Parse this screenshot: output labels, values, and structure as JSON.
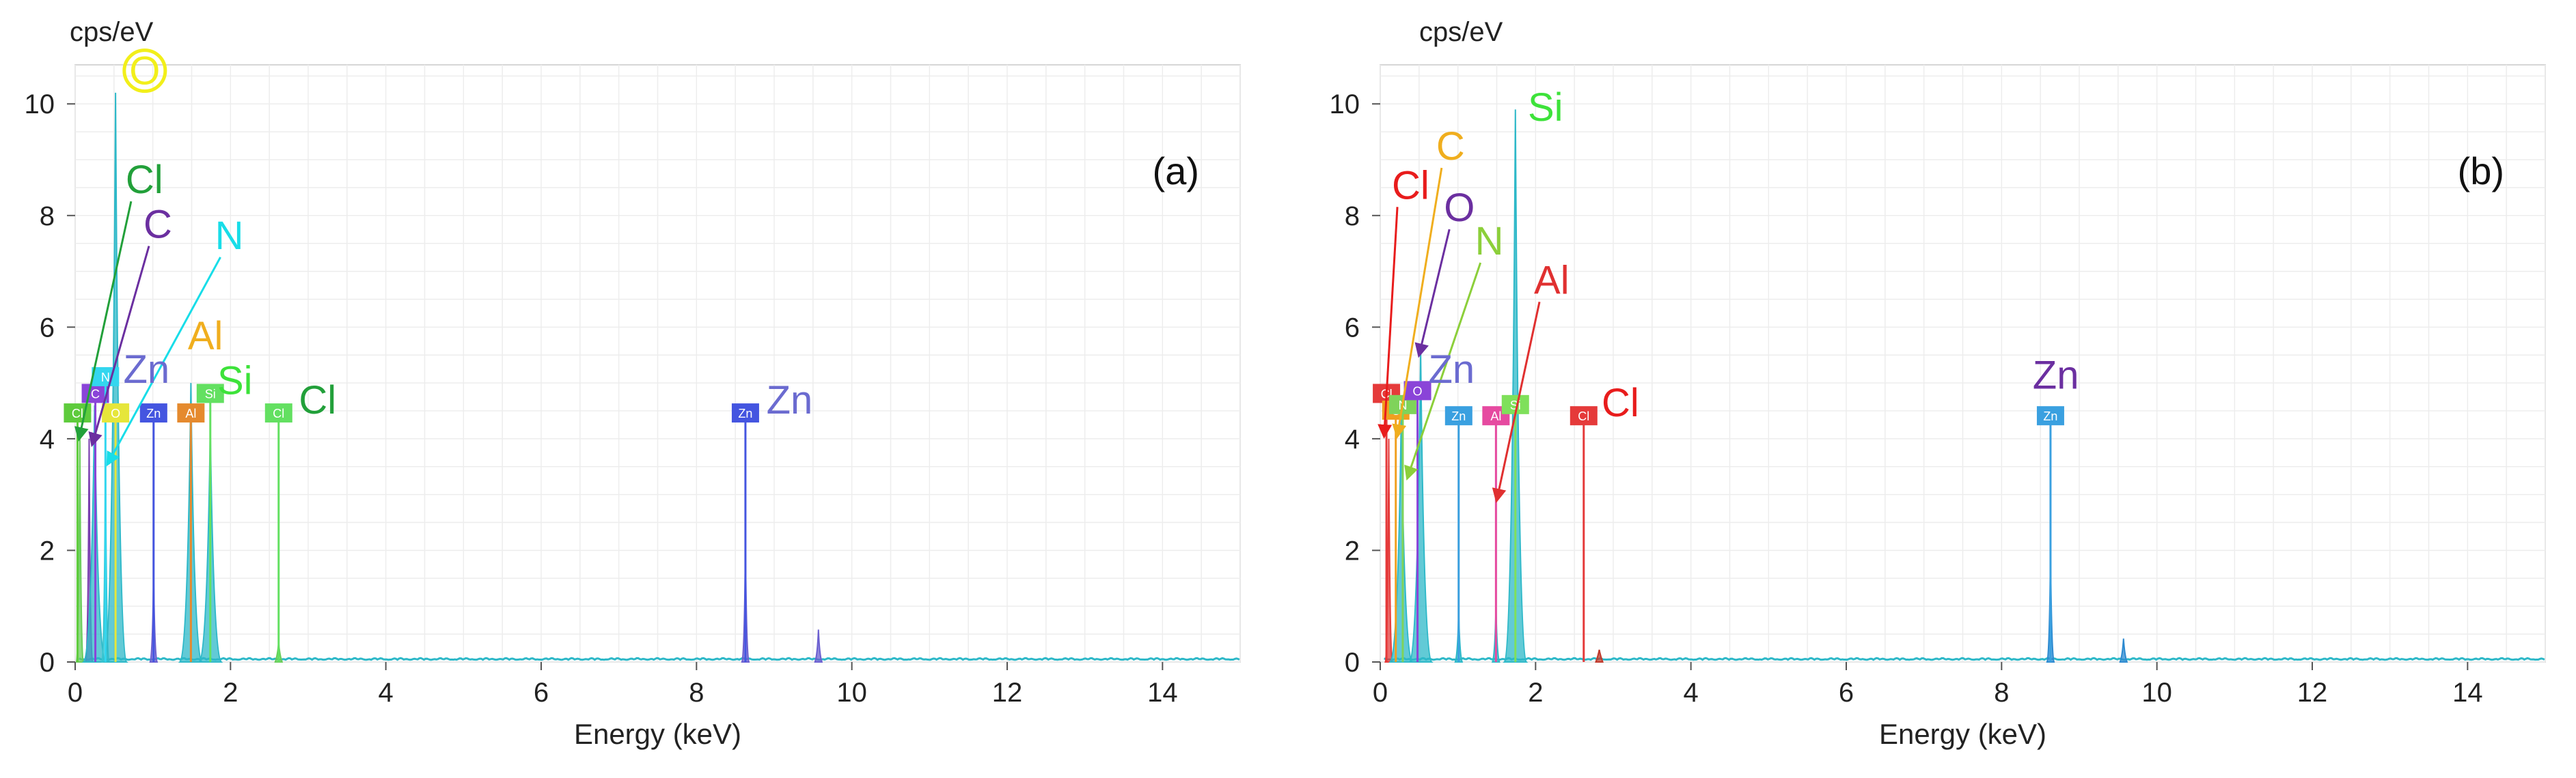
{
  "chart_data": [
    {
      "type": "line",
      "panel_label": "(a)",
      "ylabel": "cps/eV",
      "xlabel": "Energy (keV)",
      "xlim": [
        0,
        15
      ],
      "ylim": [
        0,
        10.7
      ],
      "x_ticks": [
        0,
        2,
        4,
        6,
        8,
        10,
        12,
        14
      ],
      "y_ticks": [
        0,
        2,
        4,
        6,
        8,
        10
      ],
      "grid": true,
      "spectrum_peaks": [
        {
          "energy": 0.06,
          "height": 4.1,
          "color": "#69cc5a"
        },
        {
          "energy": 0.18,
          "height": 4.0,
          "color": "#7a3fb0"
        },
        {
          "energy": 0.25,
          "height": 4.6,
          "color": "#2db8c8"
        },
        {
          "energy": 0.39,
          "height": 3.8,
          "color": "#35c4d0"
        },
        {
          "energy": 0.52,
          "height": 10.2,
          "color": "#2db8c8"
        },
        {
          "energy": 1.01,
          "height": 1.6,
          "color": "#6b5fd0"
        },
        {
          "energy": 1.49,
          "height": 5.0,
          "color": "#2db8c8"
        },
        {
          "energy": 1.74,
          "height": 4.2,
          "color": "#2db8c8"
        },
        {
          "energy": 2.62,
          "height": 0.35,
          "color": "#69cc5a"
        },
        {
          "energy": 8.63,
          "height": 2.1,
          "color": "#6b5fd0"
        },
        {
          "energy": 9.57,
          "height": 0.58,
          "color": "#6b5fd0"
        }
      ],
      "element_lines": [
        {
          "element": "Cl",
          "energy": 0.03,
          "color": "#5ecb3c",
          "label_color": "#22a03a",
          "top": 4.45
        },
        {
          "element": "C",
          "energy": 0.26,
          "color": "#8a44d8",
          "label_color": "#6b2fa0",
          "top": 4.8
        },
        {
          "element": "N",
          "energy": 0.39,
          "color": "#33d6ef",
          "label_color": "#18dde8",
          "top": 5.1
        },
        {
          "element": "O",
          "energy": 0.52,
          "color": "#e6e63a",
          "label_color": "#f2ef1a",
          "top": 4.45
        },
        {
          "element": "Zn",
          "energy": 1.01,
          "color": "#4455e0",
          "label_color": "#6b6bd0",
          "top": 4.45
        },
        {
          "element": "Al",
          "energy": 1.49,
          "color": "#e58a2e",
          "label_color": "#f0ae1e",
          "top": 4.45
        },
        {
          "element": "Si",
          "energy": 1.74,
          "color": "#63e061",
          "label_color": "#3de23a",
          "top": 4.8
        },
        {
          "element": "Cl",
          "energy": 2.62,
          "color": "#63e061",
          "label_color": "#22a03a",
          "top": 4.45
        },
        {
          "element": "Zn",
          "energy": 8.63,
          "color": "#4455e0",
          "label_color": "#6b6bd0",
          "top": 4.45
        }
      ],
      "annotations": [
        {
          "text": "O",
          "x": 0.72,
          "y": 10.35,
          "color": "#f2ef1a",
          "circle": true
        },
        {
          "text": "Cl",
          "x": 0.65,
          "y": 8.4,
          "color": "#22a03a",
          "arrow_to": [
            0.05,
            4.0
          ]
        },
        {
          "text": "C",
          "x": 0.88,
          "y": 7.6,
          "color": "#6b2fa0",
          "arrow_to": [
            0.22,
            3.9
          ]
        },
        {
          "text": "N",
          "x": 1.8,
          "y": 7.4,
          "color": "#18dde8",
          "arrow_to": [
            0.42,
            3.55
          ]
        },
        {
          "text": "Zn",
          "x": 0.62,
          "y": 5.0,
          "color": "#6b6bd0"
        },
        {
          "text": "Al",
          "x": 1.45,
          "y": 5.6,
          "color": "#f0ae1e"
        },
        {
          "text": "Si",
          "x": 1.83,
          "y": 4.8,
          "color": "#3de23a"
        },
        {
          "text": "Cl",
          "x": 2.88,
          "y": 4.45,
          "color": "#22a03a"
        },
        {
          "text": "Zn",
          "x": 8.9,
          "y": 4.45,
          "color": "#6b6bd0"
        }
      ]
    },
    {
      "type": "line",
      "panel_label": "(b)",
      "ylabel": "cps/eV",
      "xlabel": "Energy (keV)",
      "xlim": [
        0,
        15
      ],
      "ylim": [
        0,
        10.7
      ],
      "x_ticks": [
        0,
        2,
        4,
        6,
        8,
        10,
        12,
        14
      ],
      "y_ticks": [
        0,
        2,
        4,
        6,
        8,
        10
      ],
      "grid": true,
      "spectrum_peaks": [
        {
          "energy": 0.11,
          "height": 4.0,
          "color": "#e53a3a"
        },
        {
          "energy": 0.27,
          "height": 4.4,
          "color": "#2db8c8"
        },
        {
          "energy": 0.52,
          "height": 5.6,
          "color": "#2db8c8"
        },
        {
          "energy": 1.01,
          "height": 0.9,
          "color": "#2db8c8"
        },
        {
          "energy": 1.49,
          "height": 1.0,
          "color": "#2db8c8"
        },
        {
          "energy": 1.74,
          "height": 9.9,
          "color": "#2db8c8"
        },
        {
          "energy": 2.82,
          "height": 0.22,
          "color": "#c0392b"
        },
        {
          "energy": 8.63,
          "height": 2.0,
          "color": "#2d8ad0"
        },
        {
          "energy": 9.57,
          "height": 0.42,
          "color": "#2d8ad0"
        }
      ],
      "element_lines": [
        {
          "element": "Cl",
          "energy": 0.08,
          "color": "#e53a3a",
          "label_color": "#e81c1c",
          "top": 4.8
        },
        {
          "element": "C",
          "energy": 0.2,
          "color": "#f0a020",
          "label_color": "#f0ae1e",
          "top": 4.5
        },
        {
          "element": "N",
          "energy": 0.29,
          "color": "#7fd35a",
          "label_color": "#8ccf3a",
          "top": 4.6
        },
        {
          "element": "O",
          "energy": 0.48,
          "color": "#8a44d8",
          "label_color": "#6b2fa0",
          "top": 4.85
        },
        {
          "element": "Zn",
          "energy": 1.01,
          "color": "#3aa0e0",
          "label_color": "#6b6bd0",
          "top": 4.4
        },
        {
          "element": "Al",
          "energy": 1.49,
          "color": "#e64aa0",
          "label_color": "#e03030",
          "top": 4.4
        },
        {
          "element": "Si",
          "energy": 1.74,
          "color": "#7fe05a",
          "label_color": "#3de23a",
          "top": 4.6
        },
        {
          "element": "Cl",
          "energy": 2.62,
          "color": "#e53a3a",
          "label_color": "#e81c1c",
          "top": 4.4
        },
        {
          "element": "Zn",
          "energy": 8.63,
          "color": "#3aa0e0",
          "label_color": "#6b6bd0",
          "top": 4.4
        }
      ],
      "annotations": [
        {
          "text": "Si",
          "x": 1.9,
          "y": 9.7,
          "color": "#3de23a"
        },
        {
          "text": "C",
          "x": 0.72,
          "y": 9.0,
          "color": "#f0ae1e",
          "arrow_to": [
            0.22,
            4.05
          ]
        },
        {
          "text": "Cl",
          "x": 0.15,
          "y": 8.3,
          "color": "#e81c1c",
          "arrow_to": [
            0.05,
            4.05
          ]
        },
        {
          "text": "O",
          "x": 0.82,
          "y": 7.9,
          "color": "#6b2fa0",
          "arrow_to": [
            0.5,
            5.5
          ]
        },
        {
          "text": "N",
          "x": 1.22,
          "y": 7.3,
          "color": "#8ccf3a",
          "arrow_to": [
            0.35,
            3.3
          ]
        },
        {
          "text": "Al",
          "x": 1.98,
          "y": 6.6,
          "color": "#e03030",
          "arrow_to": [
            1.5,
            2.9
          ]
        },
        {
          "text": "Zn",
          "x": 0.62,
          "y": 5.0,
          "color": "#6b6bd0"
        },
        {
          "text": "Cl",
          "x": 2.85,
          "y": 4.4,
          "color": "#e81c1c"
        },
        {
          "text": "Zn",
          "x": 8.4,
          "y": 4.9,
          "color": "#6b2fa0"
        }
      ]
    }
  ]
}
